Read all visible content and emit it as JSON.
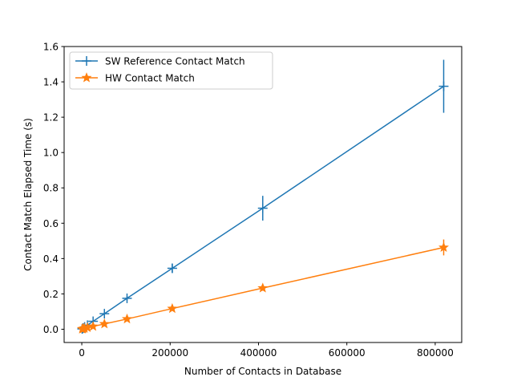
{
  "chart_data": {
    "type": "line",
    "title": "",
    "xlabel": "Number of Contacts in Database",
    "ylabel": "Contact Match Elapsed Time (s)",
    "xlim": [
      -40000,
      860000
    ],
    "ylim": [
      -0.075,
      1.6
    ],
    "xticks": [
      0,
      200000,
      400000,
      600000,
      800000
    ],
    "yticks": [
      0.0,
      0.2,
      0.4,
      0.6,
      0.8,
      1.0,
      1.2,
      1.4,
      1.6
    ],
    "xtick_labels": [
      "0",
      "200000",
      "400000",
      "600000",
      "800000"
    ],
    "ytick_labels": [
      "0.0",
      "0.2",
      "0.4",
      "0.6",
      "0.8",
      "1.0",
      "1.2",
      "1.4",
      "1.6"
    ],
    "legend_location": "upper-left",
    "series": [
      {
        "name": "SW Reference Contact Match",
        "color": "#1f77b4",
        "marker": "plus",
        "x": [
          800,
          1600,
          3200,
          6400,
          12800,
          25600,
          51200,
          102400,
          204800,
          409600,
          819200
        ],
        "y": [
          0.002,
          0.004,
          0.007,
          0.013,
          0.023,
          0.045,
          0.088,
          0.175,
          0.345,
          0.685,
          1.375
        ],
        "yerr": [
          0.001,
          0.001,
          0.002,
          0.003,
          0.005,
          0.006,
          0.01,
          0.012,
          0.025,
          0.07,
          0.15
        ]
      },
      {
        "name": "HW Contact Match",
        "color": "#ff7f0e",
        "marker": "star",
        "x": [
          800,
          1600,
          3200,
          6400,
          12800,
          25600,
          51200,
          102400,
          204800,
          409600,
          819200
        ],
        "y": [
          0.001,
          0.002,
          0.003,
          0.005,
          0.009,
          0.016,
          0.03,
          0.058,
          0.117,
          0.233,
          0.463
        ],
        "yerr": [
          0.0005,
          0.001,
          0.001,
          0.002,
          0.002,
          0.003,
          0.004,
          0.006,
          0.008,
          0.015,
          0.045
        ]
      }
    ]
  }
}
